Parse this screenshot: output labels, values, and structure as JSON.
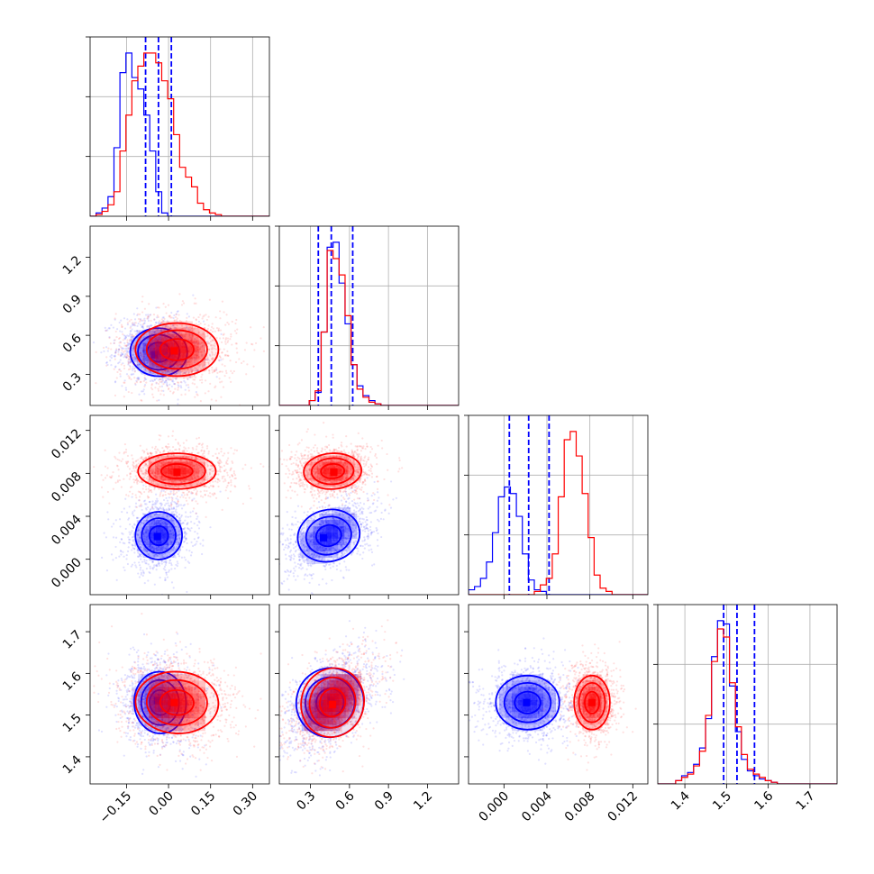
{
  "chart_data": {
    "type": "corner",
    "params": [
      {
        "ticks": [
          -0.15,
          0.0,
          0.15,
          0.3
        ],
        "tick_labels": [
          "−0.15",
          "0.00",
          "0.15",
          "0.30"
        ],
        "range": [
          -0.28,
          0.36
        ]
      },
      {
        "ticks": [
          0.3,
          0.6,
          0.9,
          1.2
        ],
        "tick_labels": [
          "0.3",
          "0.6",
          "0.9",
          "1.2"
        ],
        "range": [
          0.06,
          1.44
        ]
      },
      {
        "ticks": [
          0.0,
          0.004,
          0.008,
          0.012
        ],
        "tick_labels": [
          "0.000",
          "0.004",
          "0.008",
          "0.012"
        ],
        "range": [
          -0.0033,
          0.0134
        ]
      },
      {
        "ticks": [
          1.4,
          1.5,
          1.6,
          1.7
        ],
        "tick_labels": [
          "1.4",
          "1.5",
          "1.6",
          "1.7"
        ],
        "range": [
          1.335,
          1.765
        ]
      }
    ],
    "diag_grid_fractions": [
      0.3333,
      0.6667
    ],
    "series": [
      {
        "color": "#0000ff",
        "quantiles": [
          [
            -0.082,
            -0.036,
            0.01
          ],
          [
            0.36,
            0.46,
            0.625
          ],
          [
            0.0005,
            0.0023,
            0.0042
          ],
          [
            1.493,
            1.525,
            1.567
          ]
        ],
        "hist": [
          {
            "start": -0.28,
            "step": 0.0213,
            "counts": [
              0,
              0.02,
              0.05,
              0.12,
              0.42,
              0.88,
              1.0,
              0.85,
              0.78,
              0.62,
              0.4,
              0.15,
              0.02,
              0,
              0,
              0,
              0,
              0,
              0,
              0,
              0,
              0,
              0,
              0,
              0,
              0,
              0,
              0,
              0,
              0
            ]
          },
          {
            "start": 0.06,
            "step": 0.046,
            "counts": [
              0,
              0,
              0,
              0,
              0,
              0.03,
              0.08,
              0.45,
              0.97,
              1.0,
              0.75,
              0.5,
              0.25,
              0.12,
              0.06,
              0.03,
              0.01,
              0,
              0,
              0,
              0,
              0,
              0,
              0,
              0,
              0,
              0,
              0,
              0,
              0
            ]
          },
          {
            "start": -0.0033,
            "step": 0.000557,
            "counts": [
              0.03,
              0.05,
              0.1,
              0.2,
              0.38,
              0.6,
              0.66,
              0.62,
              0.48,
              0.25,
              0.09,
              0.03,
              0.02,
              0,
              0,
              0,
              0,
              0,
              0,
              0,
              0,
              0,
              0,
              0,
              0,
              0,
              0,
              0,
              0,
              0
            ]
          },
          {
            "start": 1.335,
            "step": 0.01433,
            "counts": [
              0,
              0,
              0,
              0.02,
              0.05,
              0.07,
              0.12,
              0.22,
              0.4,
              0.78,
              1.0,
              0.98,
              0.6,
              0.32,
              0.15,
              0.08,
              0.05,
              0.03,
              0.02,
              0.01,
              0,
              0,
              0,
              0,
              0,
              0,
              0,
              0,
              0,
              0
            ]
          }
        ],
        "pairs": [
          {
            "i": 1,
            "j": 0,
            "center": [
              -0.035,
              0.47
            ],
            "spread": [
              0.055,
              0.1
            ],
            "rho": -0.1,
            "peak": [
              -0.05,
              0.45
            ]
          },
          {
            "i": 2,
            "j": 0,
            "center": [
              -0.035,
              0.0022
            ],
            "spread": [
              0.045,
              0.0012
            ],
            "rho": 0.1,
            "peak": [
              -0.04,
              0.0021
            ]
          },
          {
            "i": 2,
            "j": 1,
            "center": [
              0.44,
              0.0022
            ],
            "spread": [
              0.13,
              0.0013
            ],
            "rho": 0.45,
            "peak": [
              0.4,
              0.002
            ]
          },
          {
            "i": 3,
            "j": 0,
            "center": [
              -0.03,
              1.53
            ],
            "spread": [
              0.05,
              0.04
            ],
            "rho": -0.1,
            "peak": [
              -0.04,
              1.535
            ]
          },
          {
            "i": 3,
            "j": 1,
            "center": [
              0.45,
              1.53
            ],
            "spread": [
              0.14,
              0.045
            ],
            "rho": 0.5,
            "peak": [
              0.46,
              1.535
            ]
          },
          {
            "i": 3,
            "j": 2,
            "center": [
              0.0022,
              1.53
            ],
            "spread": [
              0.0016,
              0.035
            ],
            "rho": 0.0,
            "peak": [
              0.0021,
              1.53
            ]
          }
        ]
      },
      {
        "color": "#ff0000",
        "hist": [
          {
            "start": -0.28,
            "step": 0.0213,
            "counts": [
              0,
              0.01,
              0.03,
              0.07,
              0.15,
              0.4,
              0.62,
              0.83,
              0.92,
              1.0,
              1.0,
              0.94,
              0.83,
              0.72,
              0.5,
              0.3,
              0.24,
              0.18,
              0.08,
              0.04,
              0.02,
              0.01,
              0,
              0,
              0,
              0,
              0,
              0,
              0,
              0
            ]
          },
          {
            "start": 0.06,
            "step": 0.046,
            "counts": [
              0,
              0,
              0,
              0,
              0,
              0.03,
              0.09,
              0.45,
              0.95,
              0.9,
              0.8,
              0.55,
              0.25,
              0.1,
              0.05,
              0.02,
              0.01,
              0,
              0,
              0,
              0,
              0,
              0,
              0,
              0,
              0,
              0,
              0,
              0,
              0
            ]
          },
          {
            "start": -0.0033,
            "step": 0.000557,
            "counts": [
              0,
              0,
              0,
              0,
              0,
              0,
              0,
              0,
              0,
              0,
              0,
              0.02,
              0.06,
              0.1,
              0.25,
              0.6,
              0.95,
              1.0,
              0.85,
              0.62,
              0.35,
              0.12,
              0.04,
              0.02,
              0,
              0,
              0,
              0,
              0,
              0
            ]
          },
          {
            "start": 1.335,
            "step": 0.01433,
            "counts": [
              0,
              0,
              0,
              0.02,
              0.04,
              0.06,
              0.11,
              0.2,
              0.42,
              0.75,
              0.95,
              0.9,
              0.62,
              0.35,
              0.18,
              0.09,
              0.06,
              0.04,
              0.02,
              0.01,
              0,
              0,
              0,
              0,
              0,
              0,
              0,
              0,
              0,
              0
            ]
          }
        ],
        "pairs": [
          {
            "i": 1,
            "j": 0,
            "center": [
              0.03,
              0.49
            ],
            "spread": [
              0.08,
              0.11
            ],
            "rho": 0.0,
            "peak": [
              0.02,
              0.48
            ]
          },
          {
            "i": 2,
            "j": 0,
            "center": [
              0.03,
              0.0082
            ],
            "spread": [
              0.075,
              0.0009
            ],
            "rho": 0.0,
            "peak": [
              0.03,
              0.0081
            ]
          },
          {
            "i": 2,
            "j": 1,
            "center": [
              0.47,
              0.0082
            ],
            "spread": [
              0.12,
              0.0009
            ],
            "rho": 0.1,
            "peak": [
              0.48,
              0.0081
            ]
          },
          {
            "i": 3,
            "j": 0,
            "center": [
              0.03,
              1.53
            ],
            "spread": [
              0.08,
              0.04
            ],
            "rho": -0.1,
            "peak": [
              0.02,
              1.53
            ]
          },
          {
            "i": 3,
            "j": 1,
            "center": [
              0.47,
              1.53
            ],
            "spread": [
              0.13,
              0.045
            ],
            "rho": 0.5,
            "peak": [
              0.47,
              1.525
            ]
          },
          {
            "i": 3,
            "j": 2,
            "center": [
              0.0082,
              1.53
            ],
            "spread": [
              0.0009,
              0.035
            ],
            "rho": 0.0,
            "peak": [
              0.0082,
              1.53
            ]
          }
        ]
      }
    ]
  }
}
